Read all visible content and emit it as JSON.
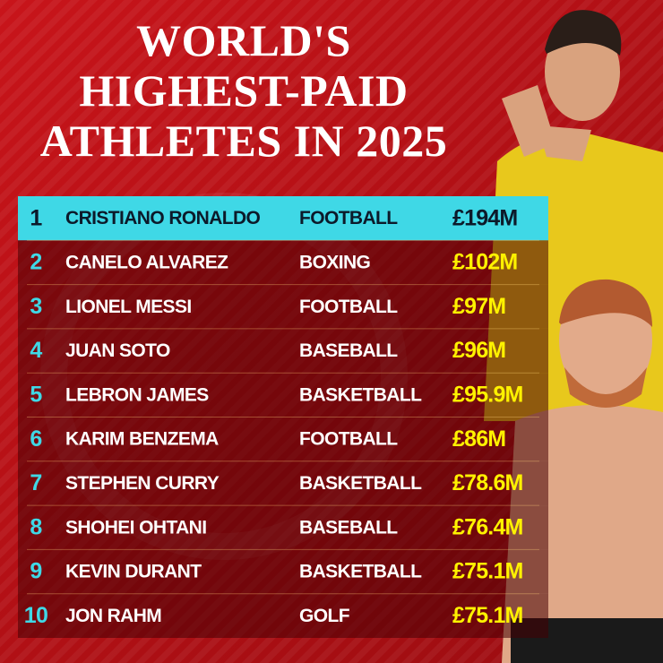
{
  "header": {
    "title_lines": [
      "WORLD'S",
      "HIGHEST-PAID",
      "ATHLETES IN 2025"
    ]
  },
  "table": {
    "rows": [
      [
        "1",
        "CRISTIANO RONALDO",
        "FOOTBALL",
        "£194M"
      ],
      [
        "2",
        "CANELO ALVAREZ",
        "BOXING",
        "£102M"
      ],
      [
        "3",
        "LIONEL MESSI",
        "FOOTBALL",
        "£97M"
      ],
      [
        "4",
        "JUAN SOTO",
        "BASEBALL",
        "£96M"
      ],
      [
        "5",
        "LEBRON JAMES",
        "BASKETBALL",
        "£95.9M"
      ],
      [
        "6",
        "KARIM BENZEMA",
        "FOOTBALL",
        "£86M"
      ],
      [
        "7",
        "STEPHEN CURRY",
        "BASKETBALL",
        "£78.6M"
      ],
      [
        "8",
        "SHOHEI OHTANI",
        "BASEBALL",
        "£76.4M"
      ],
      [
        "9",
        "KEVIN DURANT",
        "BASKETBALL",
        "£75.1M"
      ],
      [
        "10",
        "JON RAHM",
        "GOLF",
        "£75.1M"
      ]
    ]
  }
}
